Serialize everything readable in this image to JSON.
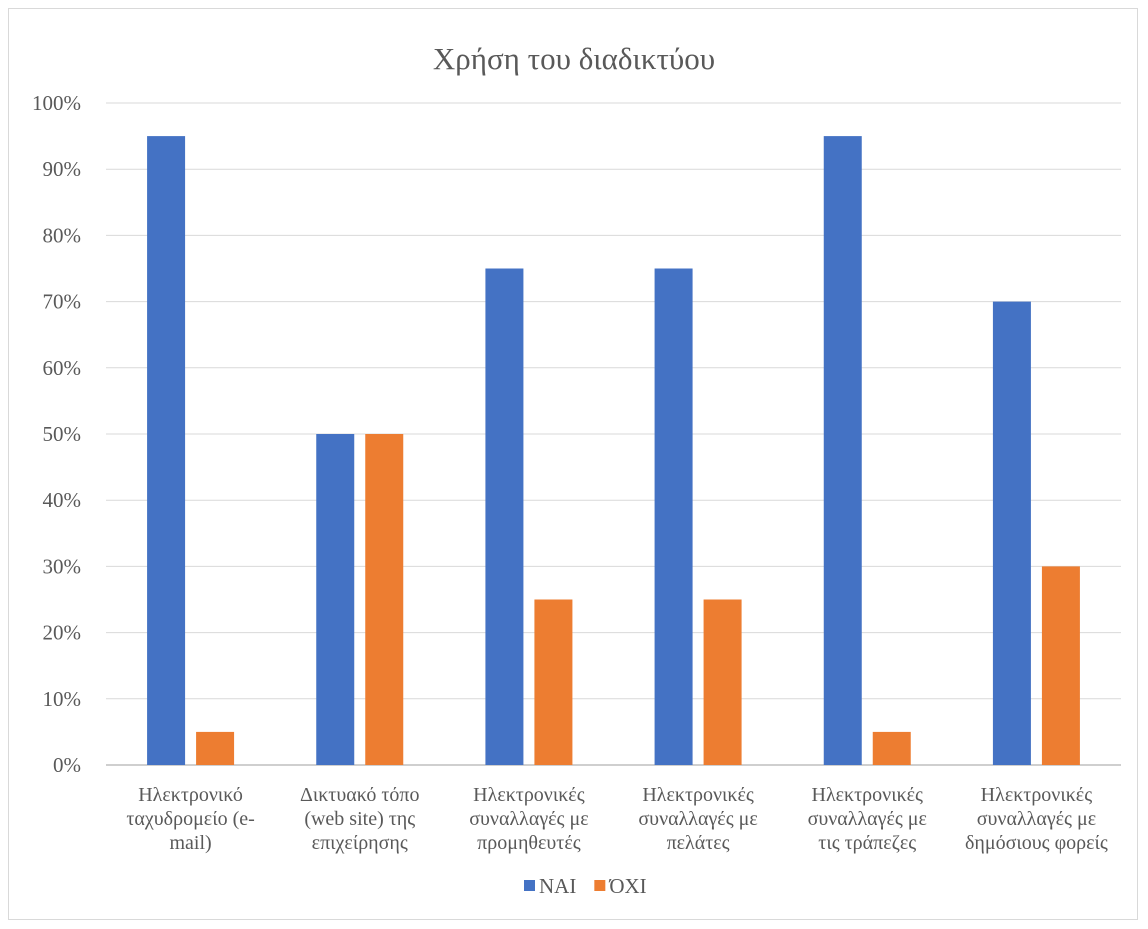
{
  "chart_data": {
    "type": "bar",
    "title": "Χρήση του διαδικτύου",
    "xlabel": "",
    "ylabel": "",
    "ylim": [
      0,
      100
    ],
    "y_ticks": [
      "0%",
      "10%",
      "20%",
      "30%",
      "40%",
      "50%",
      "60%",
      "70%",
      "80%",
      "90%",
      "100%"
    ],
    "y_unit": "%",
    "categories": [
      [
        "Ηλεκτρονικό",
        "ταχυδρομείο (e-",
        "mail)"
      ],
      [
        "Δικτυακό τόπο",
        "(web site) της",
        "επιχείρησης"
      ],
      [
        "Ηλεκτρονικές",
        "συναλλαγές με",
        "προμηθευτές"
      ],
      [
        "Ηλεκτρονικές",
        "συναλλαγές με",
        "πελάτες"
      ],
      [
        "Ηλεκτρονικές",
        "συναλλαγές με",
        "τις τράπεζες"
      ],
      [
        "Ηλεκτρονικές",
        "συναλλαγές με",
        "δημόσιους φορείς"
      ]
    ],
    "series": [
      {
        "name": "ΝΑΙ",
        "color": "#4472c4",
        "values": [
          95,
          50,
          75,
          75,
          95,
          70
        ]
      },
      {
        "name": "ΌΧΙ",
        "color": "#ed7d31",
        "values": [
          5,
          50,
          25,
          25,
          5,
          30
        ]
      }
    ],
    "grid": true,
    "legend_position": "bottom"
  }
}
